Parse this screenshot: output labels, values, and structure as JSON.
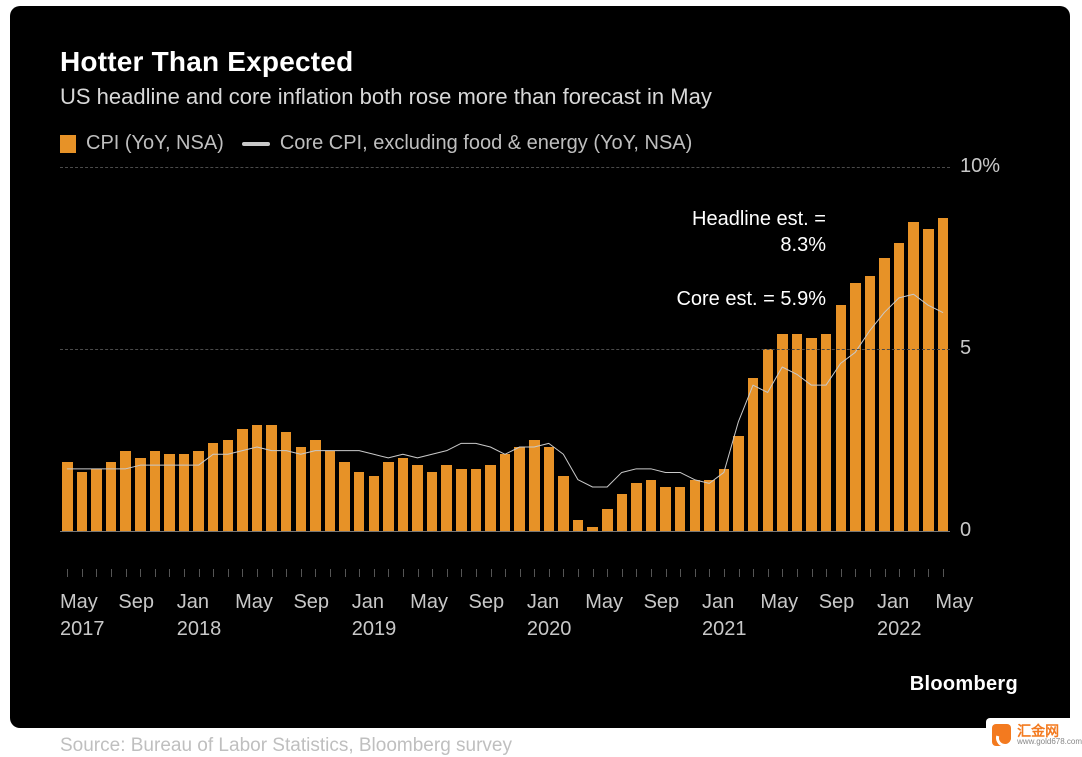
{
  "chart": {
    "type": "bar+line",
    "title": "Hotter Than Expected",
    "subtitle": "US headline and core inflation both rose more than forecast in May",
    "background_color": "#000000",
    "text_color": "#ffffff",
    "muted_text_color": "#bfbfbf",
    "grid_color": "#4a4a4a",
    "baseline_color": "#777777",
    "title_fontsize": 28,
    "subtitle_fontsize": 22,
    "legend_fontsize": 20,
    "axis_fontsize": 20,
    "font_family": "Helvetica Neue",
    "legend": {
      "bar": {
        "label": "CPI (YoY, NSA)",
        "color": "#e79227"
      },
      "line": {
        "label": "Core CPI, excluding food & energy (YoY, NSA)",
        "color": "#c9c9c9",
        "width": 4
      }
    },
    "ylim": [
      -1,
      10
    ],
    "yticks": [
      0,
      5,
      10
    ],
    "ytick_labels": [
      "0",
      "5",
      "10%"
    ],
    "grid_y": [
      5,
      10
    ],
    "xlabels": [
      {
        "index": 0,
        "text": "May\n2017"
      },
      {
        "index": 4,
        "text": "Sep"
      },
      {
        "index": 8,
        "text": "Jan\n2018"
      },
      {
        "index": 12,
        "text": "May"
      },
      {
        "index": 16,
        "text": "Sep"
      },
      {
        "index": 20,
        "text": "Jan\n2019"
      },
      {
        "index": 24,
        "text": "May"
      },
      {
        "index": 28,
        "text": "Sep"
      },
      {
        "index": 32,
        "text": "Jan\n2020"
      },
      {
        "index": 36,
        "text": "May"
      },
      {
        "index": 40,
        "text": "Sep"
      },
      {
        "index": 44,
        "text": "Jan\n2021"
      },
      {
        "index": 48,
        "text": "May"
      },
      {
        "index": 52,
        "text": "Sep"
      },
      {
        "index": 56,
        "text": "Jan\n2022"
      },
      {
        "index": 60,
        "text": "May"
      }
    ],
    "bar_values": [
      1.9,
      1.6,
      1.7,
      1.9,
      2.2,
      2.0,
      2.2,
      2.1,
      2.1,
      2.2,
      2.4,
      2.5,
      2.8,
      2.9,
      2.9,
      2.7,
      2.3,
      2.5,
      2.2,
      1.9,
      1.6,
      1.5,
      1.9,
      2.0,
      1.8,
      1.6,
      1.8,
      1.7,
      1.7,
      1.8,
      2.1,
      2.3,
      2.5,
      2.3,
      1.5,
      0.3,
      0.1,
      0.6,
      1.0,
      1.3,
      1.4,
      1.2,
      1.2,
      1.4,
      1.4,
      1.7,
      2.6,
      4.2,
      5.0,
      5.4,
      5.4,
      5.3,
      5.4,
      6.2,
      6.8,
      7.0,
      7.5,
      7.9,
      8.5,
      8.3,
      8.6
    ],
    "line_values": [
      1.7,
      1.7,
      1.7,
      1.7,
      1.7,
      1.8,
      1.8,
      1.8,
      1.8,
      1.8,
      2.1,
      2.1,
      2.2,
      2.3,
      2.2,
      2.2,
      2.1,
      2.2,
      2.2,
      2.2,
      2.2,
      2.1,
      2.0,
      2.1,
      2.0,
      2.1,
      2.2,
      2.4,
      2.4,
      2.3,
      2.1,
      2.3,
      2.3,
      2.4,
      2.1,
      1.4,
      1.2,
      1.2,
      1.6,
      1.7,
      1.7,
      1.6,
      1.6,
      1.4,
      1.3,
      1.6,
      3.0,
      4.0,
      3.8,
      4.5,
      4.3,
      4.0,
      4.0,
      4.6,
      4.9,
      5.5,
      6.0,
      6.4,
      6.5,
      6.2,
      6.0
    ],
    "bar_color": "#e79227",
    "bar_width_ratio": 0.72,
    "line_color": "#c9c9c9",
    "line_width": 4,
    "annotations": [
      {
        "text": "Headline est. =\n8.3%",
        "x_index": 52,
        "y_value": 8.6,
        "align": "right"
      },
      {
        "text": "Core est. = 5.9%",
        "x_index": 52,
        "y_value": 6.4,
        "align": "right"
      }
    ],
    "source": "Source: Bureau of Labor Statistics, Bloomberg survey",
    "brand": "Bloomberg"
  },
  "watermark": {
    "logo_bg": "#f37a1f",
    "text_zh": "汇金网",
    "text_url": "www.gold678.com"
  }
}
